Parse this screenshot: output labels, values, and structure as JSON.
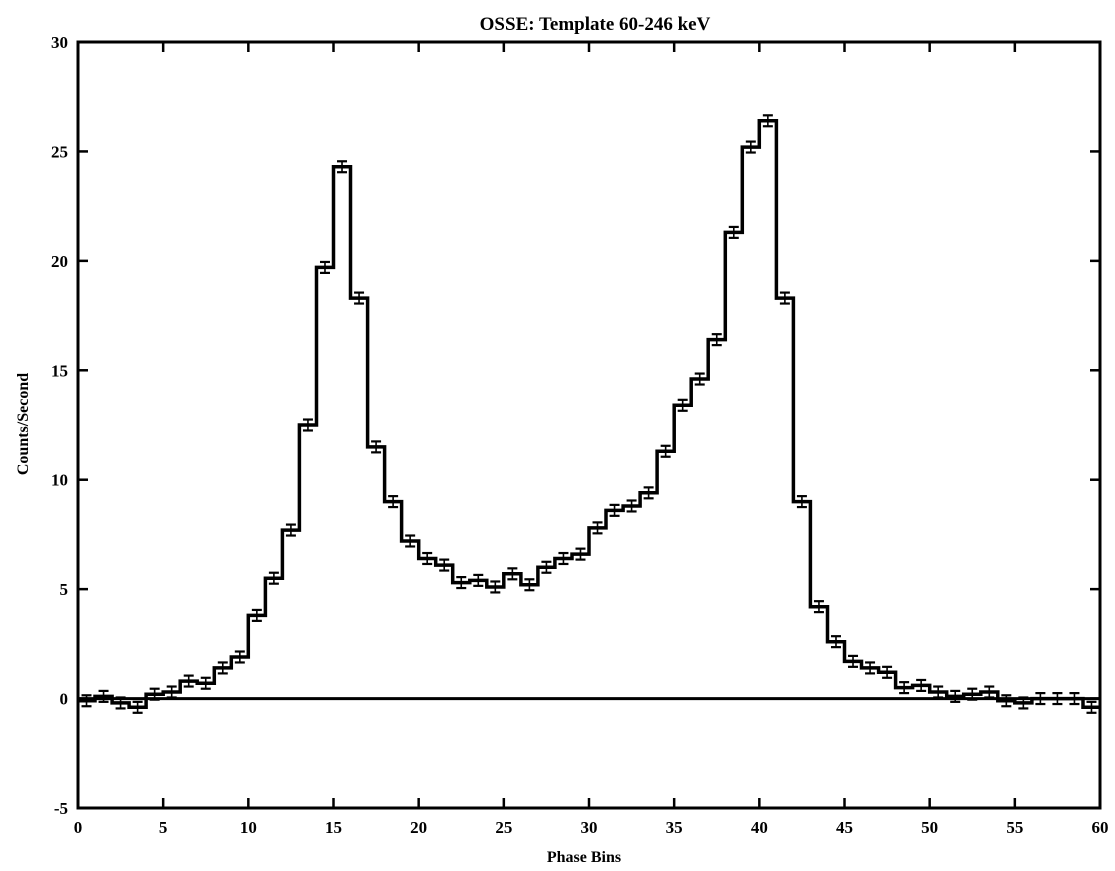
{
  "chart_data": {
    "type": "line",
    "title": "OSSE: Template 60-246 keV",
    "xlabel": "Phase Bins",
    "ylabel": "Counts/Second",
    "xlim": [
      0,
      60
    ],
    "ylim": [
      -5,
      30
    ],
    "xticks": [
      0,
      5,
      10,
      15,
      20,
      25,
      30,
      35,
      40,
      45,
      50,
      55,
      60
    ],
    "yticks": [
      -5,
      0,
      5,
      10,
      15,
      20,
      25,
      30
    ],
    "xtick_labels": [
      "0",
      "5",
      "10",
      "15",
      "20",
      "25",
      "30",
      "35",
      "40",
      "45",
      "50",
      "55",
      "60"
    ],
    "ytick_labels": [
      "-5",
      "0",
      "5",
      "10",
      "15",
      "20",
      "25",
      "30"
    ],
    "grid": false,
    "reference_line_y": 0,
    "series": [
      {
        "style": "histogram-step",
        "bin_width": 1,
        "x": [
          0,
          1,
          2,
          3,
          4,
          5,
          6,
          7,
          8,
          9,
          10,
          11,
          12,
          13,
          14,
          15,
          16,
          17,
          18,
          19,
          20,
          21,
          22,
          23,
          24,
          25,
          26,
          27,
          28,
          29,
          30,
          31,
          32,
          33,
          34,
          35,
          36,
          37,
          38,
          39,
          40,
          41,
          42,
          43,
          44,
          45,
          46,
          47,
          48,
          49,
          50,
          51,
          52,
          53,
          54,
          55,
          56,
          57,
          58,
          59
        ],
        "values": [
          -0.1,
          0.1,
          -0.2,
          -0.4,
          0.2,
          0.3,
          0.8,
          0.7,
          1.4,
          1.9,
          3.8,
          5.5,
          7.7,
          12.5,
          19.7,
          24.3,
          18.3,
          11.5,
          9.0,
          7.2,
          6.4,
          6.1,
          5.3,
          5.4,
          5.1,
          5.7,
          5.2,
          6.0,
          6.4,
          6.6,
          7.8,
          8.6,
          8.8,
          9.4,
          11.3,
          13.4,
          14.6,
          16.4,
          21.3,
          25.2,
          26.4,
          18.3,
          9.0,
          4.2,
          2.6,
          1.7,
          1.4,
          1.2,
          0.5,
          0.6,
          0.3,
          0.1,
          0.2,
          0.3,
          -0.1,
          -0.2,
          0.0,
          0.0,
          0.0,
          -0.4
        ],
        "errors": [
          0.25,
          0.25,
          0.25,
          0.25,
          0.25,
          0.25,
          0.25,
          0.25,
          0.25,
          0.25,
          0.25,
          0.25,
          0.25,
          0.25,
          0.25,
          0.25,
          0.25,
          0.25,
          0.25,
          0.25,
          0.25,
          0.25,
          0.25,
          0.25,
          0.25,
          0.25,
          0.25,
          0.25,
          0.25,
          0.25,
          0.25,
          0.25,
          0.25,
          0.25,
          0.25,
          0.25,
          0.25,
          0.25,
          0.25,
          0.25,
          0.25,
          0.25,
          0.25,
          0.25,
          0.25,
          0.25,
          0.25,
          0.25,
          0.25,
          0.25,
          0.25,
          0.25,
          0.25,
          0.25,
          0.25,
          0.25,
          0.25,
          0.25,
          0.25,
          0.25
        ]
      }
    ]
  }
}
